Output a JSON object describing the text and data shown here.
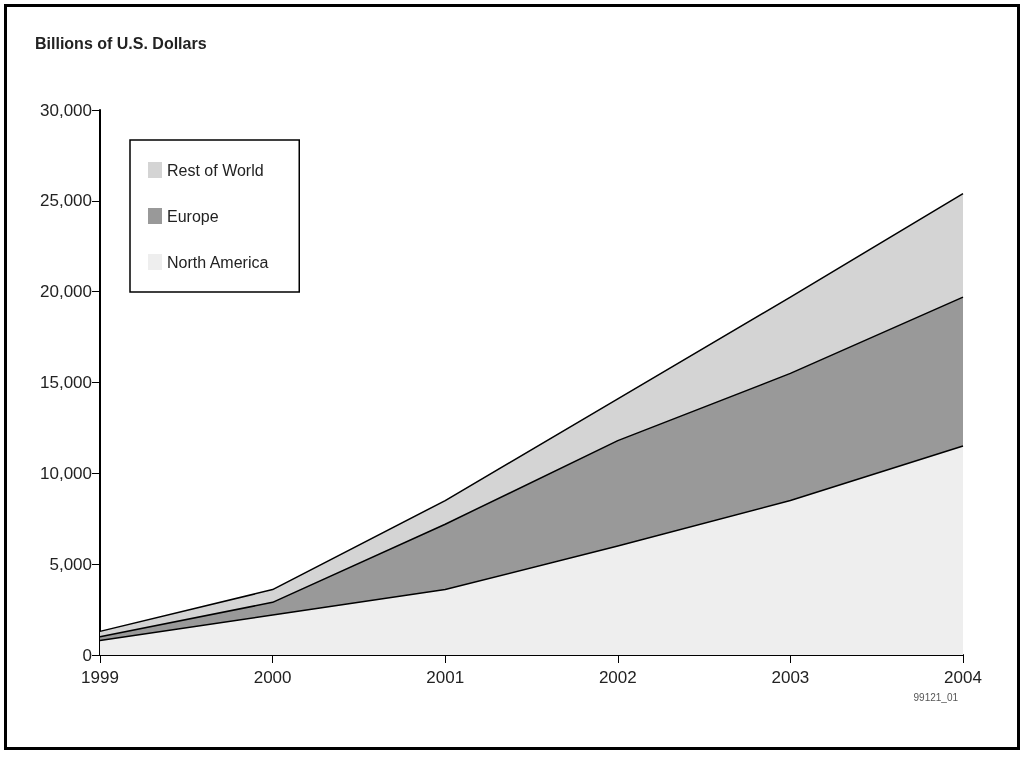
{
  "chart_data": {
    "type": "area",
    "stacked": true,
    "title": "Billions of U.S. Dollars",
    "categories": [
      "1999",
      "2000",
      "2001",
      "2002",
      "2003",
      "2004"
    ],
    "series": [
      {
        "name": "North America",
        "color": "#eeeeee",
        "values": [
          800,
          2200,
          3600,
          6000,
          8500,
          11500
        ]
      },
      {
        "name": "Europe",
        "color": "#999999",
        "values": [
          200,
          700,
          3600,
          5800,
          7000,
          8200
        ]
      },
      {
        "name": "Rest of World",
        "color": "#d4d4d4",
        "values": [
          300,
          700,
          1300,
          2300,
          4200,
          5700
        ]
      }
    ],
    "ylim": [
      0,
      30000
    ],
    "yticks": [
      0,
      {
        "value": 5000,
        "label": "5,000"
      },
      {
        "value": 10000,
        "label": "10,000"
      },
      {
        "value": 15000,
        "label": "15,000"
      },
      {
        "value": 20000,
        "label": "20,000"
      },
      {
        "value": 25000,
        "label": "25,000"
      },
      {
        "value": 30000,
        "label": "30,000"
      }
    ],
    "grid": false,
    "legend": "top left",
    "annotations": [
      "99121_01"
    ]
  }
}
